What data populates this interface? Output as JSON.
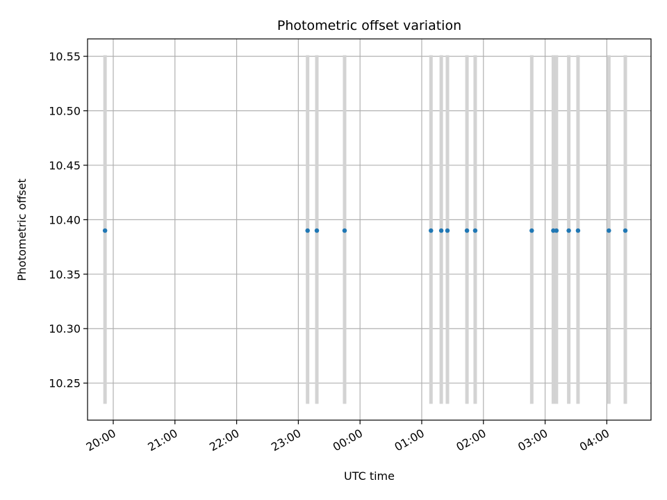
{
  "chart_data": {
    "type": "scatter",
    "title": "Photometric offset variation",
    "xlabel": "UTC time",
    "ylabel": "Photometric offset",
    "x_axis_type": "time",
    "x_range": [
      "19:35",
      "04:43"
    ],
    "ylim": [
      10.216,
      10.566
    ],
    "yticks": [
      10.25,
      10.3,
      10.35,
      10.4,
      10.45,
      10.5,
      10.55
    ],
    "xticks": [
      "20:00",
      "21:00",
      "22:00",
      "23:00",
      "00:00",
      "01:00",
      "02:00",
      "03:00",
      "04:00"
    ],
    "grid": true,
    "error_bar_range": [
      10.231,
      10.551
    ],
    "colors": {
      "points": "#1f77b4",
      "error_bars": "#d3d3d3",
      "grid": "#b0b0b0"
    },
    "points": [
      {
        "time": "19:52",
        "value": 10.39
      },
      {
        "time": "23:09",
        "value": 10.39
      },
      {
        "time": "23:18",
        "value": 10.39
      },
      {
        "time": "23:45",
        "value": 10.39
      },
      {
        "time": "01:09",
        "value": 10.39
      },
      {
        "time": "01:19",
        "value": 10.39
      },
      {
        "time": "01:25",
        "value": 10.39
      },
      {
        "time": "01:44",
        "value": 10.39
      },
      {
        "time": "01:52",
        "value": 10.39
      },
      {
        "time": "02:47",
        "value": 10.39
      },
      {
        "time": "03:08",
        "value": 10.39
      },
      {
        "time": "03:11",
        "value": 10.39
      },
      {
        "time": "03:23",
        "value": 10.39
      },
      {
        "time": "03:32",
        "value": 10.39
      },
      {
        "time": "04:02",
        "value": 10.39
      },
      {
        "time": "04:18",
        "value": 10.39
      }
    ]
  }
}
